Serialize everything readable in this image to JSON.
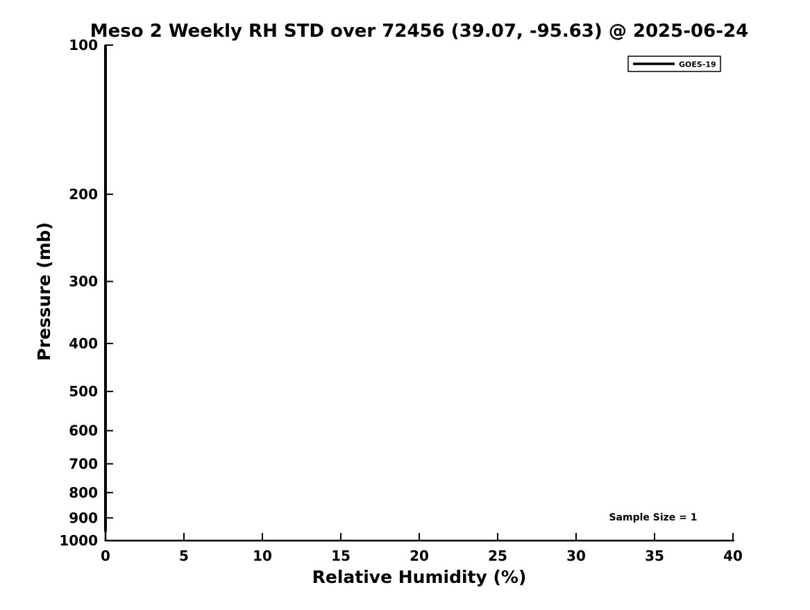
{
  "title": "Meso 2 Weekly RH STD over 72456 (39.07, -95.63) @ 2025-06-24",
  "annotation": "Sample Size = 1",
  "colors": {
    "foreground": "#000000",
    "background": "#ffffff",
    "series_goes19": "#000000"
  },
  "chart_data": {
    "type": "line",
    "title": "Meso 2 Weekly RH STD over 72456 (39.07, -95.63) @ 2025-06-24",
    "xlabel": "Relative Humidity (%)",
    "ylabel": "Pressure (mb)",
    "xlim": [
      0,
      40
    ],
    "ylim": [
      1000,
      100
    ],
    "yscale": "log",
    "grid": false,
    "xticks": [
      "0",
      "5",
      "10",
      "15",
      "20",
      "25",
      "30",
      "35",
      "40"
    ],
    "yticks": [
      "100",
      "200",
      "300",
      "400",
      "500",
      "600",
      "700",
      "800",
      "900",
      "1000"
    ],
    "legend": {
      "position": "upper right",
      "entries": [
        {
          "label": "GOES-19",
          "color": "#000000",
          "style": "solid"
        }
      ]
    },
    "annotations": [
      {
        "text": "Sample Size = 1",
        "position": "lower right"
      }
    ],
    "series": [
      {
        "name": "GOES-19",
        "color": "#000000",
        "x_rh_std_percent": [
          0,
          0,
          0,
          0,
          0,
          0,
          0,
          0,
          0,
          0,
          0,
          0,
          0,
          0,
          0,
          0,
          0,
          0,
          0
        ],
        "y_pressure_mb": [
          100,
          150,
          200,
          250,
          300,
          350,
          400,
          450,
          500,
          550,
          600,
          650,
          700,
          750,
          800,
          850,
          900,
          925,
          960
        ]
      }
    ]
  }
}
